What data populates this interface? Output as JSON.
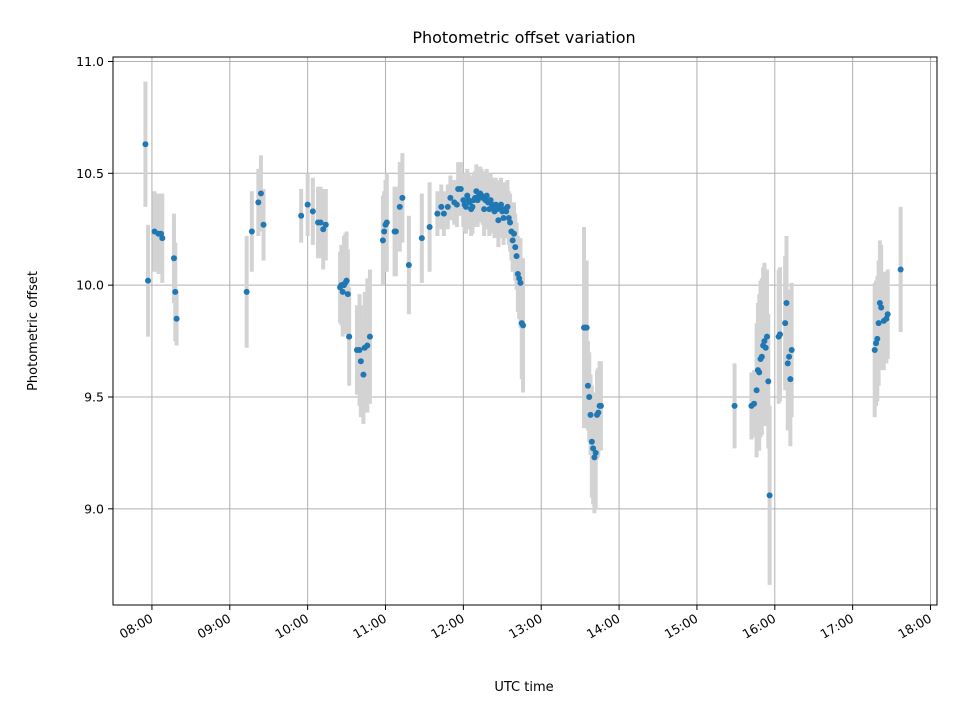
{
  "chart_data": {
    "type": "scatter",
    "title": "Photometric offset variation",
    "xlabel": "UTC time",
    "ylabel": "Photometric offset",
    "xlim": [
      "07:30",
      "18:05"
    ],
    "ylim": [
      8.57,
      11.02
    ],
    "grid": true,
    "xticks": [
      "08:00",
      "09:00",
      "10:00",
      "11:00",
      "12:00",
      "13:00",
      "14:00",
      "15:00",
      "16:00",
      "17:00",
      "18:00"
    ],
    "yticks": [
      "9.0",
      "9.5",
      "10.0",
      "10.5",
      "11.0"
    ],
    "colors": {
      "points": "#1f77b4",
      "errorbars": "#d3d3d3",
      "grid": "#b0b0b0",
      "axes": "#000000"
    },
    "series": [
      {
        "points": [
          [
            "07:55",
            10.63,
            0.28
          ],
          [
            "07:57",
            10.02,
            0.25
          ],
          [
            "08:02",
            10.24,
            0.18
          ],
          [
            "08:05",
            10.23,
            0.18
          ],
          [
            "08:07",
            10.23,
            0.18
          ],
          [
            "08:08",
            10.21,
            0.2
          ],
          [
            "08:17",
            10.12,
            0.2
          ],
          [
            "08:18",
            9.97,
            0.22
          ],
          [
            "08:19",
            9.85,
            0.12
          ],
          [
            "09:13",
            9.97,
            0.25
          ],
          [
            "09:17",
            10.24,
            0.18
          ],
          [
            "09:22",
            10.37,
            0.15
          ],
          [
            "09:24",
            10.41,
            0.17
          ],
          [
            "09:26",
            10.27,
            0.16
          ],
          [
            "09:55",
            10.31,
            0.12
          ],
          [
            "10:00",
            10.36,
            0.14
          ],
          [
            "10:04",
            10.33,
            0.15
          ],
          [
            "10:08",
            10.28,
            0.16
          ],
          [
            "10:10",
            10.28,
            0.16
          ],
          [
            "10:12",
            10.25,
            0.18
          ],
          [
            "10:14",
            10.27,
            0.16
          ],
          [
            "10:25",
            9.99,
            0.16
          ],
          [
            "10:26",
            10.0,
            0.18
          ],
          [
            "10:27",
            9.97,
            0.2
          ],
          [
            "10:28",
            10.0,
            0.22
          ],
          [
            "10:29",
            10.01,
            0.22
          ],
          [
            "10:30",
            10.02,
            0.22
          ],
          [
            "10:31",
            9.96,
            0.2
          ],
          [
            "10:32",
            9.77,
            0.22
          ],
          [
            "10:38",
            9.71,
            0.2
          ],
          [
            "10:40",
            9.71,
            0.25
          ],
          [
            "10:41",
            9.66,
            0.25
          ],
          [
            "10:43",
            9.6,
            0.22
          ],
          [
            "10:44",
            9.72,
            0.25
          ],
          [
            "10:46",
            9.73,
            0.3
          ],
          [
            "10:48",
            9.77,
            0.3
          ],
          [
            "10:58",
            10.2,
            0.2
          ],
          [
            "10:59",
            10.24,
            0.18
          ],
          [
            "11:00",
            10.27,
            0.2
          ],
          [
            "11:01",
            10.28,
            0.22
          ],
          [
            "11:07",
            10.24,
            0.2
          ],
          [
            "11:08",
            10.24,
            0.2
          ],
          [
            "11:11",
            10.35,
            0.2
          ],
          [
            "11:13",
            10.39,
            0.2
          ],
          [
            "11:18",
            10.09,
            0.22
          ],
          [
            "11:28",
            10.21,
            0.2
          ],
          [
            "11:34",
            10.26,
            0.2
          ],
          [
            "11:40",
            10.32,
            0.1
          ],
          [
            "11:43",
            10.35,
            0.1
          ],
          [
            "11:45",
            10.32,
            0.1
          ],
          [
            "11:48",
            10.35,
            0.1
          ],
          [
            "11:50",
            10.39,
            0.1
          ],
          [
            "11:53",
            10.37,
            0.1
          ],
          [
            "11:55",
            10.36,
            0.1
          ],
          [
            "11:56",
            10.43,
            0.12
          ],
          [
            "11:58",
            10.43,
            0.12
          ],
          [
            "12:00",
            10.38,
            0.12
          ],
          [
            "12:01",
            10.36,
            0.12
          ],
          [
            "12:02",
            10.35,
            0.12
          ],
          [
            "12:03",
            10.4,
            0.12
          ],
          [
            "12:04",
            10.38,
            0.12
          ],
          [
            "12:05",
            10.37,
            0.12
          ],
          [
            "12:06",
            10.34,
            0.12
          ],
          [
            "12:07",
            10.35,
            0.12
          ],
          [
            "12:08",
            10.38,
            0.12
          ],
          [
            "12:09",
            10.39,
            0.12
          ],
          [
            "12:10",
            10.42,
            0.12
          ],
          [
            "12:11",
            10.38,
            0.12
          ],
          [
            "12:12",
            10.4,
            0.12
          ],
          [
            "12:13",
            10.41,
            0.12
          ],
          [
            "12:14",
            10.4,
            0.12
          ],
          [
            "12:15",
            10.39,
            0.12
          ],
          [
            "12:16",
            10.34,
            0.12
          ],
          [
            "12:17",
            10.38,
            0.12
          ],
          [
            "12:18",
            10.4,
            0.12
          ],
          [
            "12:19",
            10.37,
            0.12
          ],
          [
            "12:20",
            10.34,
            0.12
          ],
          [
            "12:21",
            10.38,
            0.12
          ],
          [
            "12:22",
            10.36,
            0.12
          ],
          [
            "12:23",
            10.35,
            0.12
          ],
          [
            "12:24",
            10.33,
            0.12
          ],
          [
            "12:25",
            10.36,
            0.12
          ],
          [
            "12:26",
            10.34,
            0.12
          ],
          [
            "12:27",
            10.29,
            0.12
          ],
          [
            "12:28",
            10.35,
            0.12
          ],
          [
            "12:29",
            10.36,
            0.12
          ],
          [
            "12:30",
            10.33,
            0.12
          ],
          [
            "12:31",
            10.3,
            0.12
          ],
          [
            "12:32",
            10.34,
            0.12
          ],
          [
            "12:33",
            10.33,
            0.12
          ],
          [
            "12:34",
            10.35,
            0.12
          ],
          [
            "12:35",
            10.3,
            0.12
          ],
          [
            "12:36",
            10.28,
            0.13
          ],
          [
            "12:37",
            10.24,
            0.13
          ],
          [
            "12:38",
            10.2,
            0.14
          ],
          [
            "12:39",
            10.23,
            0.14
          ],
          [
            "12:40",
            10.17,
            0.15
          ],
          [
            "12:41",
            10.13,
            0.15
          ],
          [
            "12:42",
            10.05,
            0.17
          ],
          [
            "12:43",
            10.03,
            0.18
          ],
          [
            "12:44",
            10.01,
            0.2
          ],
          [
            "12:45",
            9.83,
            0.25
          ],
          [
            "12:46",
            9.82,
            0.3
          ],
          [
            "13:33",
            9.81,
            0.45
          ],
          [
            "13:34",
            9.81,
            0.3
          ],
          [
            "13:35",
            9.81,
            0.3
          ],
          [
            "13:36",
            9.55,
            0.2
          ],
          [
            "13:37",
            9.5,
            0.2
          ],
          [
            "13:38",
            9.42,
            0.18
          ],
          [
            "13:39",
            9.3,
            0.25
          ],
          [
            "13:40",
            9.27,
            0.25
          ],
          [
            "13:41",
            9.23,
            0.25
          ],
          [
            "13:42",
            9.25,
            0.25
          ],
          [
            "13:43",
            9.42,
            0.2
          ],
          [
            "13:44",
            9.43,
            0.2
          ],
          [
            "13:45",
            9.46,
            0.2
          ],
          [
            "13:46",
            9.46,
            0.2
          ],
          [
            "15:29",
            9.46,
            0.19
          ],
          [
            "15:42",
            9.46,
            0.15
          ],
          [
            "15:44",
            9.47,
            0.15
          ],
          [
            "15:46",
            9.53,
            0.3
          ],
          [
            "15:47",
            9.62,
            0.3
          ],
          [
            "15:48",
            9.61,
            0.35
          ],
          [
            "15:49",
            9.67,
            0.35
          ],
          [
            "15:50",
            9.68,
            0.35
          ],
          [
            "15:51",
            9.73,
            0.35
          ],
          [
            "15:52",
            9.75,
            0.35
          ],
          [
            "15:53",
            9.72,
            0.35
          ],
          [
            "15:54",
            9.77,
            0.3
          ],
          [
            "15:55",
            9.57,
            0.3
          ],
          [
            "15:56",
            9.06,
            0.4
          ],
          [
            "16:03",
            9.77,
            0.3
          ],
          [
            "16:04",
            9.78,
            0.3
          ],
          [
            "16:08",
            9.83,
            0.3
          ],
          [
            "16:09",
            9.92,
            0.3
          ],
          [
            "16:10",
            9.65,
            0.3
          ],
          [
            "16:11",
            9.68,
            0.3
          ],
          [
            "16:12",
            9.58,
            0.3
          ],
          [
            "16:13",
            9.71,
            0.3
          ],
          [
            "17:17",
            9.71,
            0.3
          ],
          [
            "17:18",
            9.74,
            0.28
          ],
          [
            "17:19",
            9.76,
            0.28
          ],
          [
            "17:20",
            9.83,
            0.28
          ],
          [
            "17:21",
            9.92,
            0.28
          ],
          [
            "17:22",
            9.9,
            0.28
          ],
          [
            "17:24",
            9.84,
            0.22
          ],
          [
            "17:26",
            9.85,
            0.2
          ],
          [
            "17:27",
            9.87,
            0.2
          ],
          [
            "17:37",
            10.07,
            0.28
          ]
        ]
      }
    ]
  }
}
